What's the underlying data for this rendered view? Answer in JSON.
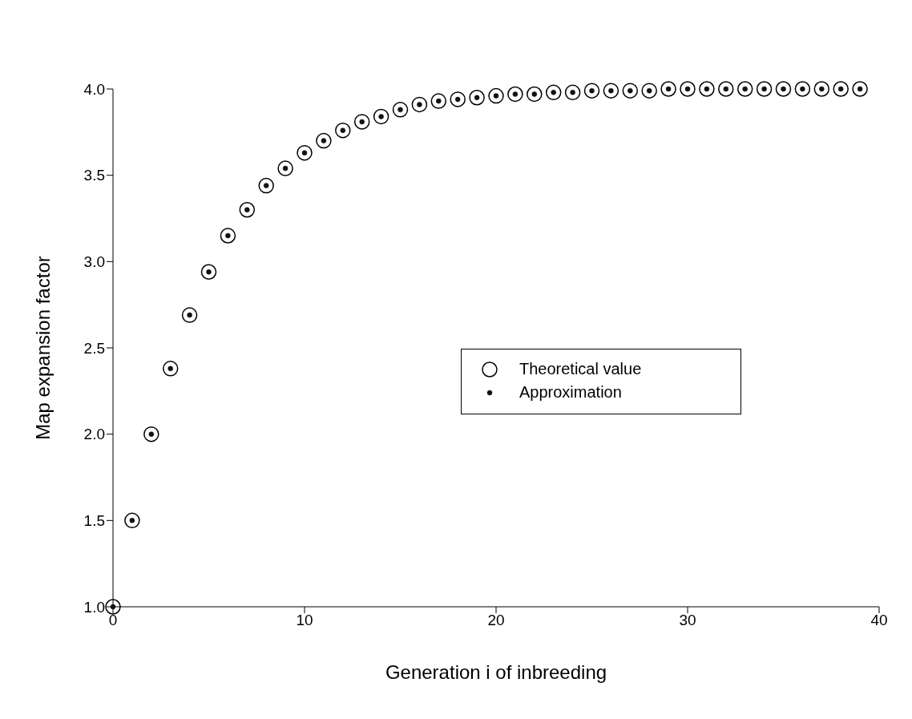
{
  "chart_data": {
    "type": "scatter",
    "xlabel": "Generation i of inbreeding",
    "ylabel": "Map expansion factor",
    "x": [
      0,
      1,
      2,
      3,
      4,
      5,
      6,
      7,
      8,
      9,
      10,
      11,
      12,
      13,
      14,
      15,
      16,
      17,
      18,
      19,
      20,
      21,
      22,
      23,
      24,
      25,
      26,
      27,
      28,
      29,
      30,
      31,
      32,
      33,
      34,
      35,
      36,
      37,
      38,
      39
    ],
    "series": [
      {
        "name": "Theoretical value",
        "color": "#000000",
        "values": [
          1.0,
          1.5,
          2.0,
          2.38,
          2.69,
          2.94,
          3.15,
          3.3,
          3.44,
          3.54,
          3.63,
          3.7,
          3.76,
          3.81,
          3.84,
          3.88,
          3.91,
          3.93,
          3.94,
          3.95,
          3.96,
          3.97,
          3.97,
          3.98,
          3.98,
          3.99,
          3.99,
          3.99,
          3.99,
          4.0,
          4.0,
          4.0,
          4.0,
          4.0,
          4.0,
          4.0,
          4.0,
          4.0,
          4.0,
          4.0
        ]
      },
      {
        "name": "Approximation",
        "color": "#111111",
        "values": [
          1.0,
          1.5,
          2.0,
          2.38,
          2.69,
          2.94,
          3.15,
          3.3,
          3.44,
          3.54,
          3.63,
          3.7,
          3.76,
          3.81,
          3.84,
          3.88,
          3.91,
          3.93,
          3.94,
          3.95,
          3.96,
          3.97,
          3.97,
          3.98,
          3.98,
          3.99,
          3.99,
          3.99,
          3.99,
          4.0,
          4.0,
          4.0,
          4.0,
          4.0,
          4.0,
          4.0,
          4.0,
          4.0,
          4.0,
          4.0
        ]
      }
    ],
    "xlim": [
      0,
      40
    ],
    "xticks": [
      0,
      10,
      20,
      30,
      40
    ],
    "ylim": [
      1,
      4
    ],
    "yticks": [
      {
        "value": 1,
        "label": "1.0"
      },
      {
        "value": 1.5,
        "label": "1.5"
      },
      {
        "value": 2,
        "label": "2.0"
      },
      {
        "value": 2.5,
        "label": "2.5"
      },
      {
        "value": 3,
        "label": "3.0"
      },
      {
        "value": 3.5,
        "label": "3.5"
      },
      {
        "value": 4,
        "label": "4.0"
      }
    ],
    "marker": "circle",
    "legend": "right",
    "grid": false
  }
}
